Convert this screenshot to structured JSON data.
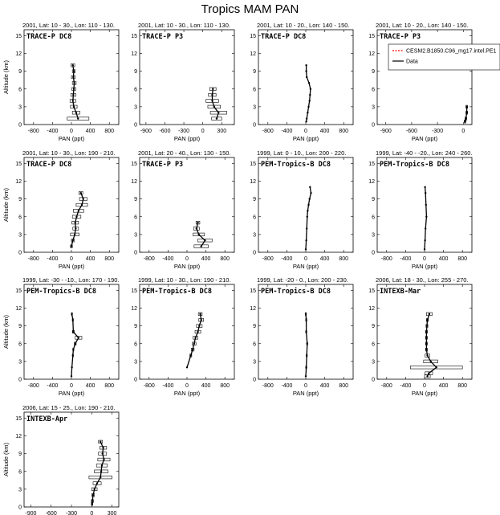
{
  "figure": {
    "title": "Tropics MAM PAN",
    "xlabel": "PAN (ppt)",
    "ylabel": "Altitude (km)",
    "legend": {
      "placement": "top-right of fourth panel",
      "entries": [
        {
          "label": "CESM2.B1850.C96_mg17.intel.PE1",
          "color": "#ff0000",
          "style": "dashed"
        },
        {
          "label": "Data",
          "color": "#000000",
          "style": "solid"
        }
      ]
    }
  },
  "chart_data": [
    {
      "type": "line",
      "header": "2001, Lat: 10 - 30., Lon: 110 - 130.",
      "title": "TRACE-P DC8",
      "xticks": [
        "-800",
        "-400",
        "0",
        "400",
        "800"
      ],
      "xlim": [
        -1000,
        1000
      ],
      "yticks": [
        "0",
        "3",
        "6",
        "9",
        "12",
        "15"
      ],
      "ylim": [
        0,
        16
      ],
      "series": [
        {
          "name": "Data",
          "points": [
            {
              "alt": 1,
              "pan": 140,
              "err": 230
            },
            {
              "alt": 2,
              "pan": 100,
              "err": 80
            },
            {
              "alt": 3,
              "pan": 50,
              "err": 70
            },
            {
              "alt": 4,
              "pan": 30,
              "err": 60
            },
            {
              "alt": 5,
              "pan": 40,
              "err": 50
            },
            {
              "alt": 6,
              "pan": 50,
              "err": 40
            },
            {
              "alt": 7,
              "pan": 60,
              "err": 40
            },
            {
              "alt": 8,
              "pan": 40,
              "err": 40
            },
            {
              "alt": 9,
              "pan": 50,
              "err": 30
            },
            {
              "alt": 10,
              "pan": 30,
              "err": 40
            }
          ]
        }
      ]
    },
    {
      "type": "line",
      "header": "2001, Lat: 10 - 30., Lon: 110 - 130.",
      "title": "TRACE-P P3",
      "xticks": [
        "-900",
        "-600",
        "-300",
        "0",
        "300"
      ],
      "xlim": [
        -1000,
        500
      ],
      "yticks": [
        "0",
        "3",
        "6",
        "9",
        "12",
        "15"
      ],
      "ylim": [
        0,
        16
      ],
      "series": [
        {
          "name": "Data",
          "points": [
            {
              "alt": 1,
              "pan": 220,
              "err": 80
            },
            {
              "alt": 2,
              "pan": 250,
              "err": 130
            },
            {
              "alt": 3,
              "pan": 180,
              "err": 100
            },
            {
              "alt": 4,
              "pan": 150,
              "err": 100
            },
            {
              "alt": 5,
              "pan": 150,
              "err": 60
            },
            {
              "alt": 6,
              "pan": 160,
              "err": 50
            }
          ]
        }
      ]
    },
    {
      "type": "line",
      "header": "2001, Lat: 10 - 20., Lon: 140 - 150.",
      "title": "TRACE-P DC8",
      "xticks": [
        "-800",
        "-400",
        "0",
        "400",
        "800"
      ],
      "xlim": [
        -1000,
        1000
      ],
      "yticks": [
        "0",
        "3",
        "6",
        "9",
        "12",
        "15"
      ],
      "ylim": [
        0,
        16
      ],
      "series": [
        {
          "name": "Data",
          "points": [
            {
              "alt": 0.5,
              "pan": 10,
              "err": 0
            },
            {
              "alt": 1,
              "pan": 20,
              "err": 0
            },
            {
              "alt": 2,
              "pan": 40,
              "err": 0
            },
            {
              "alt": 3,
              "pan": 60,
              "err": 0
            },
            {
              "alt": 4,
              "pan": 80,
              "err": 0
            },
            {
              "alt": 5,
              "pan": 90,
              "err": 0
            },
            {
              "alt": 6,
              "pan": 100,
              "err": 0
            },
            {
              "alt": 7,
              "pan": 70,
              "err": 0
            },
            {
              "alt": 8,
              "pan": 20,
              "err": 0
            },
            {
              "alt": 9,
              "pan": 10,
              "err": 0
            },
            {
              "alt": 10,
              "pan": 10,
              "err": 0
            }
          ]
        }
      ]
    },
    {
      "type": "line",
      "header": "2001, Lat: 10 - 20., Lon: 140 - 150.",
      "title": "TRACE-P P3",
      "xticks": [
        "-900",
        "-600",
        "-300",
        "0"
      ],
      "xlim": [
        -1000,
        100
      ],
      "yticks": [
        "0",
        "3",
        "6",
        "9",
        "12",
        "15"
      ],
      "ylim": [
        0,
        16
      ],
      "series": [
        {
          "name": "Data",
          "points": [
            {
              "alt": 0.5,
              "pan": 20,
              "err": 10
            },
            {
              "alt": 1,
              "pan": 30,
              "err": 10
            },
            {
              "alt": 2,
              "pan": 40,
              "err": 10
            },
            {
              "alt": 3,
              "pan": 40,
              "err": 10
            }
          ]
        }
      ]
    },
    {
      "type": "line",
      "header": "2001, Lat: 10 - 30., Lon: 190 - 210.",
      "title": "TRACE-P DC8",
      "xticks": [
        "-800",
        "-400",
        "0",
        "400",
        "800"
      ],
      "xlim": [
        -1000,
        1000
      ],
      "yticks": [
        "0",
        "3",
        "6",
        "9",
        "12",
        "15"
      ],
      "ylim": [
        0,
        16
      ],
      "series": [
        {
          "name": "Data",
          "points": [
            {
              "alt": 1,
              "pan": 0,
              "err": 20
            },
            {
              "alt": 2,
              "pan": 30,
              "err": 30
            },
            {
              "alt": 3,
              "pan": 70,
              "err": 90
            },
            {
              "alt": 4,
              "pan": 90,
              "err": 60
            },
            {
              "alt": 5,
              "pan": 80,
              "err": 70
            },
            {
              "alt": 6,
              "pan": 110,
              "err": 90
            },
            {
              "alt": 7,
              "pan": 150,
              "err": 110
            },
            {
              "alt": 8,
              "pan": 220,
              "err": 120
            },
            {
              "alt": 9,
              "pan": 250,
              "err": 80
            },
            {
              "alt": 10,
              "pan": 200,
              "err": 40
            }
          ]
        }
      ]
    },
    {
      "type": "line",
      "header": "2001, Lat: 20 - 40., Lon: 130 - 150.",
      "title": "TRACE-P P3",
      "xticks": [
        "-800",
        "-400",
        "0",
        "400",
        "800"
      ],
      "xlim": [
        -1000,
        1000
      ],
      "yticks": [
        "0",
        "3",
        "6",
        "9",
        "12",
        "15"
      ],
      "ylim": [
        0,
        16
      ],
      "series": [
        {
          "name": "Data",
          "points": [
            {
              "alt": 1,
              "pan": 300,
              "err": 150
            },
            {
              "alt": 2,
              "pan": 380,
              "err": 150
            },
            {
              "alt": 3,
              "pan": 250,
              "err": 120
            },
            {
              "alt": 4,
              "pan": 200,
              "err": 60
            },
            {
              "alt": 5,
              "pan": 230,
              "err": 40
            }
          ]
        }
      ]
    },
    {
      "type": "line",
      "header": "1999, Lat: 0 - 10., Lon: 200 - 220.",
      "title": "PEM-Tropics-B DC8",
      "xticks": [
        "-800",
        "-400",
        "0",
        "400",
        "800"
      ],
      "xlim": [
        -1000,
        1000
      ],
      "yticks": [
        "0",
        "3",
        "6",
        "9",
        "12",
        "15"
      ],
      "ylim": [
        0,
        16
      ],
      "series": [
        {
          "name": "Data",
          "points": [
            {
              "alt": 0.5,
              "pan": 0,
              "err": 0
            },
            {
              "alt": 2,
              "pan": 10,
              "err": 0
            },
            {
              "alt": 4,
              "pan": 20,
              "err": 0
            },
            {
              "alt": 6,
              "pan": 30,
              "err": 0
            },
            {
              "alt": 7,
              "pan": 40,
              "err": 0
            },
            {
              "alt": 8,
              "pan": 60,
              "err": 0
            },
            {
              "alt": 9,
              "pan": 80,
              "err": 0
            },
            {
              "alt": 10,
              "pan": 110,
              "err": 0
            },
            {
              "alt": 11,
              "pan": 90,
              "err": 0
            }
          ]
        }
      ]
    },
    {
      "type": "line",
      "header": "1999, Lat: -40 - -20., Lon: 240 - 260.",
      "title": "PEM-Tropics-B DC8",
      "xticks": [
        "-800",
        "-400",
        "0",
        "400",
        "800"
      ],
      "xlim": [
        -1000,
        1000
      ],
      "yticks": [
        "0",
        "3",
        "6",
        "9",
        "12",
        "15"
      ],
      "ylim": [
        0,
        16
      ],
      "series": [
        {
          "name": "Data",
          "points": [
            {
              "alt": 0.5,
              "pan": 0,
              "err": 0
            },
            {
              "alt": 2,
              "pan": 10,
              "err": 0
            },
            {
              "alt": 4,
              "pan": 20,
              "err": 0
            },
            {
              "alt": 6,
              "pan": 40,
              "err": 0
            },
            {
              "alt": 8,
              "pan": 30,
              "err": 0
            },
            {
              "alt": 10,
              "pan": 20,
              "err": 0
            },
            {
              "alt": 11,
              "pan": 10,
              "err": 0
            }
          ]
        }
      ]
    },
    {
      "type": "line",
      "header": "1999, Lat: -30 - -10., Lon: 170 - 190.",
      "title": "PEM-Tropics-B DC8",
      "xticks": [
        "-800",
        "-400",
        "0",
        "400",
        "800"
      ],
      "xlim": [
        -1000,
        1000
      ],
      "yticks": [
        "0",
        "3",
        "6",
        "9",
        "12",
        "15"
      ],
      "ylim": [
        0,
        16
      ],
      "series": [
        {
          "name": "Data",
          "points": [
            {
              "alt": 0.5,
              "pan": 0,
              "err": 0
            },
            {
              "alt": 2,
              "pan": 10,
              "err": 0
            },
            {
              "alt": 4,
              "pan": 30,
              "err": 10
            },
            {
              "alt": 5,
              "pan": 40,
              "err": 10
            },
            {
              "alt": 6,
              "pan": 80,
              "err": 20
            },
            {
              "alt": 7,
              "pan": 150,
              "err": 70
            },
            {
              "alt": 8,
              "pan": 40,
              "err": 20
            },
            {
              "alt": 10,
              "pan": 30,
              "err": 10
            },
            {
              "alt": 11,
              "pan": 10,
              "err": 10
            }
          ]
        }
      ]
    },
    {
      "type": "line",
      "header": "1999, Lat: 10 - 30., Lon: 190 - 210.",
      "title": "PEM-Tropics-B DC8",
      "xticks": [
        "-800",
        "-400",
        "0",
        "400",
        "800"
      ],
      "xlim": [
        -1000,
        1000
      ],
      "yticks": [
        "0",
        "3",
        "6",
        "9",
        "12",
        "15"
      ],
      "ylim": [
        0,
        16
      ],
      "series": [
        {
          "name": "Data",
          "points": [
            {
              "alt": 2,
              "pan": 0,
              "err": 0
            },
            {
              "alt": 4,
              "pan": 80,
              "err": 20
            },
            {
              "alt": 5,
              "pan": 120,
              "err": 30
            },
            {
              "alt": 6,
              "pan": 150,
              "err": 40
            },
            {
              "alt": 7,
              "pan": 180,
              "err": 50
            },
            {
              "alt": 8,
              "pan": 230,
              "err": 60
            },
            {
              "alt": 9,
              "pan": 260,
              "err": 60
            },
            {
              "alt": 10,
              "pan": 300,
              "err": 50
            },
            {
              "alt": 11,
              "pan": 280,
              "err": 40
            }
          ]
        }
      ]
    },
    {
      "type": "line",
      "header": "1999, Lat: -20 - 0., Lon: 200 - 230.",
      "title": "PEM-Tropics-B DC8",
      "xticks": [
        "-800",
        "-400",
        "0",
        "400",
        "800"
      ],
      "xlim": [
        -1000,
        1000
      ],
      "yticks": [
        "0",
        "3",
        "6",
        "9",
        "12",
        "15"
      ],
      "ylim": [
        0,
        16
      ],
      "series": [
        {
          "name": "Data",
          "points": [
            {
              "alt": 0.5,
              "pan": 0,
              "err": 0
            },
            {
              "alt": 2,
              "pan": 10,
              "err": 10
            },
            {
              "alt": 4,
              "pan": 20,
              "err": 10
            },
            {
              "alt": 6,
              "pan": 30,
              "err": 10
            },
            {
              "alt": 8,
              "pan": 10,
              "err": 10
            },
            {
              "alt": 10,
              "pan": 10,
              "err": 10
            },
            {
              "alt": 11,
              "pan": 0,
              "err": 10
            }
          ]
        }
      ]
    },
    {
      "type": "line",
      "header": "2006, Lat: 18 - 30., Lon: 255 - 270.",
      "title": "INTEXB-Mar",
      "xticks": [
        "-800",
        "-400",
        "0",
        "400",
        "800"
      ],
      "xlim": [
        -1000,
        1000
      ],
      "yticks": [
        "0",
        "3",
        "6",
        "9",
        "12",
        "15"
      ],
      "ylim": [
        0,
        16
      ],
      "series": [
        {
          "name": "Data",
          "points": [
            {
              "alt": 0.5,
              "pan": 60,
              "err": 60
            },
            {
              "alt": 1,
              "pan": 90,
              "err": 80
            },
            {
              "alt": 2,
              "pan": 250,
              "err": 550
            },
            {
              "alt": 3,
              "pan": 130,
              "err": 150
            },
            {
              "alt": 4,
              "pan": 60,
              "err": 50
            },
            {
              "alt": 5,
              "pan": 40,
              "err": 20
            },
            {
              "alt": 6,
              "pan": 40,
              "err": 20
            },
            {
              "alt": 7,
              "pan": 40,
              "err": 20
            },
            {
              "alt": 8,
              "pan": 40,
              "err": 20
            },
            {
              "alt": 9,
              "pan": 50,
              "err": 20
            },
            {
              "alt": 10,
              "pan": 60,
              "err": 20
            },
            {
              "alt": 11,
              "pan": 100,
              "err": 60
            }
          ]
        }
      ]
    },
    {
      "type": "line",
      "header": "2006, Lat: 15 - 25., Lon: 190 - 210.",
      "title": "INTEXB-Apr",
      "xticks": [
        "-900",
        "-600",
        "-300",
        "0",
        "300"
      ],
      "xlim": [
        -1000,
        400
      ],
      "yticks": [
        "0",
        "3",
        "6",
        "9",
        "12",
        "15"
      ],
      "ylim": [
        0,
        16
      ],
      "series": [
        {
          "name": "Data",
          "points": [
            {
              "alt": 0.5,
              "pan": 5,
              "err": 10
            },
            {
              "alt": 1,
              "pan": 10,
              "err": 15
            },
            {
              "alt": 2,
              "pan": 20,
              "err": 20
            },
            {
              "alt": 3,
              "pan": 40,
              "err": 40
            },
            {
              "alt": 4,
              "pan": 80,
              "err": 60
            },
            {
              "alt": 5,
              "pan": 130,
              "err": 170
            },
            {
              "alt": 6,
              "pan": 140,
              "err": 100
            },
            {
              "alt": 7,
              "pan": 150,
              "err": 80
            },
            {
              "alt": 8,
              "pan": 180,
              "err": 90
            },
            {
              "alt": 9,
              "pan": 160,
              "err": 60
            },
            {
              "alt": 10,
              "pan": 170,
              "err": 50
            },
            {
              "alt": 11,
              "pan": 130,
              "err": 30
            }
          ]
        }
      ]
    }
  ]
}
